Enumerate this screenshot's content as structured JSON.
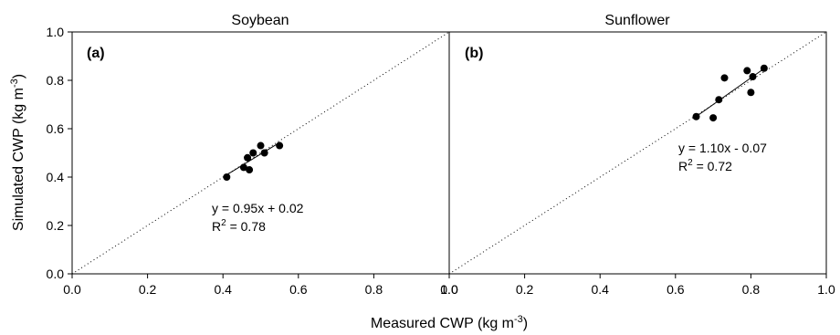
{
  "chart_data": [
    {
      "type": "scatter",
      "panel_label": "(a)",
      "title": "Soybean",
      "xlabel": "Measured CWP (kg m",
      "ylabel": "Simulated CWP (kg m",
      "unit_exponent": "-3",
      "unit_close": ")",
      "xlim": [
        0.0,
        1.0
      ],
      "ylim": [
        0.0,
        1.0
      ],
      "x_ticks": [
        "0.0",
        "0.2",
        "0.4",
        "0.6",
        "0.8",
        "1.0"
      ],
      "y_ticks": [
        "0.0",
        "0.2",
        "0.4",
        "0.6",
        "0.8",
        "1.0"
      ],
      "points": [
        {
          "x": 0.41,
          "y": 0.4
        },
        {
          "x": 0.455,
          "y": 0.44
        },
        {
          "x": 0.465,
          "y": 0.48
        },
        {
          "x": 0.47,
          "y": 0.43
        },
        {
          "x": 0.48,
          "y": 0.5
        },
        {
          "x": 0.5,
          "y": 0.53
        },
        {
          "x": 0.51,
          "y": 0.5
        },
        {
          "x": 0.55,
          "y": 0.53
        }
      ],
      "fit": {
        "slope": 0.95,
        "intercept": 0.02,
        "x_range": [
          0.41,
          0.55
        ]
      },
      "equation": "y = 0.95x + 0.02",
      "r2_prefix": "R",
      "r2_sup": "2",
      "r2_value": " = 0.78",
      "one_to_one_line": true,
      "grid": false
    },
    {
      "type": "scatter",
      "panel_label": "(b)",
      "title": "Sunflower",
      "xlim": [
        0.0,
        1.0
      ],
      "ylim": [
        0.0,
        1.0
      ],
      "x_ticks": [
        "0.0",
        "0.2",
        "0.4",
        "0.6",
        "0.8",
        "1.0"
      ],
      "points": [
        {
          "x": 0.655,
          "y": 0.65
        },
        {
          "x": 0.7,
          "y": 0.645
        },
        {
          "x": 0.715,
          "y": 0.72
        },
        {
          "x": 0.73,
          "y": 0.81
        },
        {
          "x": 0.79,
          "y": 0.84
        },
        {
          "x": 0.8,
          "y": 0.75
        },
        {
          "x": 0.805,
          "y": 0.815
        },
        {
          "x": 0.835,
          "y": 0.85
        }
      ],
      "fit": {
        "slope": 1.1,
        "intercept": -0.07,
        "x_range": [
          0.655,
          0.835
        ]
      },
      "equation": "y = 1.10x - 0.07",
      "r2_prefix": "R",
      "r2_sup": "2",
      "r2_value": " = 0.72",
      "one_to_one_line": true,
      "grid": false
    }
  ]
}
